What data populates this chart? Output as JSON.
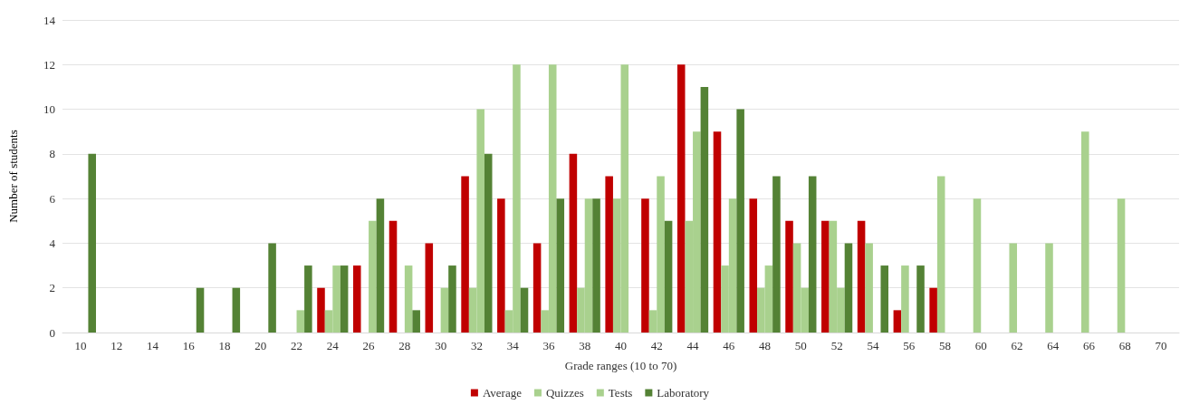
{
  "chart_data": {
    "type": "bar",
    "xlabel": "Grade ranges (10 to 70)",
    "ylabel": "Number of students",
    "categories": [
      "10",
      "12",
      "14",
      "16",
      "18",
      "20",
      "22",
      "24",
      "26",
      "28",
      "30",
      "32",
      "34",
      "36",
      "38",
      "40",
      "42",
      "44",
      "46",
      "48",
      "50",
      "52",
      "54",
      "56",
      "58",
      "60",
      "62",
      "64",
      "66",
      "68",
      "70"
    ],
    "series": [
      {
        "name": "Average",
        "color": "#c00000",
        "values": [
          null,
          null,
          null,
          null,
          null,
          null,
          null,
          2,
          3,
          5,
          4,
          7,
          6,
          4,
          8,
          7,
          6,
          12,
          9,
          6,
          5,
          5,
          5,
          1,
          2,
          null,
          null,
          null,
          null,
          null,
          null
        ]
      },
      {
        "name": "Quizzes",
        "color": "#a9d18e",
        "values": [
          null,
          null,
          null,
          null,
          null,
          null,
          null,
          1,
          null,
          null,
          null,
          2,
          1,
          1,
          2,
          6,
          1,
          5,
          3,
          2,
          4,
          5,
          4,
          3,
          7,
          6,
          4,
          4,
          9,
          6,
          null
        ]
      },
      {
        "name": "Tests",
        "color": "#a9d18e",
        "values": [
          null,
          null,
          null,
          null,
          null,
          null,
          1,
          3,
          5,
          3,
          2,
          10,
          12,
          12,
          6,
          12,
          7,
          9,
          6,
          3,
          2,
          2,
          null,
          null,
          null,
          null,
          null,
          null,
          null,
          null,
          null
        ]
      },
      {
        "name": "Laboratory",
        "color": "#548235",
        "values": [
          8,
          null,
          null,
          2,
          2,
          4,
          3,
          3,
          6,
          1,
          3,
          8,
          2,
          6,
          6,
          null,
          5,
          11,
          10,
          7,
          7,
          4,
          3,
          3,
          null,
          null,
          null,
          null,
          null,
          null,
          null
        ]
      }
    ],
    "ylim": [
      0,
      14
    ],
    "yticks": [
      0,
      2,
      4,
      6,
      8,
      10,
      12,
      14
    ],
    "grid": "y",
    "legend": "bottom"
  }
}
